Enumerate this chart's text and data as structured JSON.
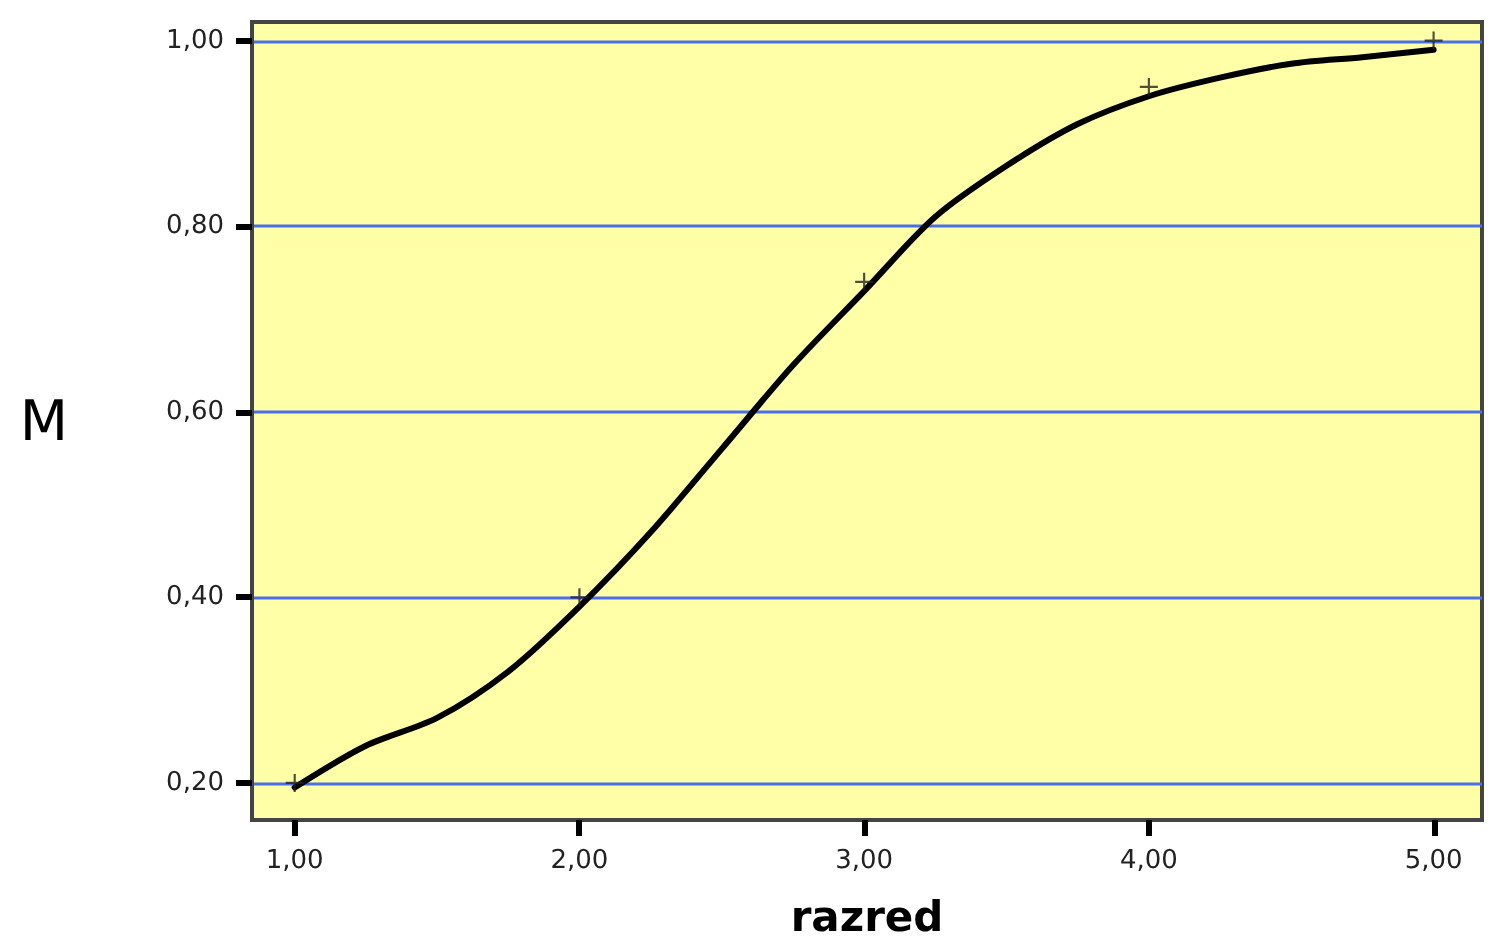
{
  "chart_data": {
    "type": "scatter",
    "xlabel": "razred",
    "ylabel": "M",
    "xlim": [
      0.85,
      5.17
    ],
    "xticks": [
      {
        "value": 1,
        "label": "1,00"
      },
      {
        "value": 2,
        "label": "2,00"
      },
      {
        "value": 3,
        "label": "3,00"
      },
      {
        "value": 4,
        "label": "4,00"
      },
      {
        "value": 5,
        "label": "5,00"
      }
    ],
    "ylim": [
      0.16,
      1.02
    ],
    "yticks": [
      {
        "value": 0.2,
        "label": "0,20"
      },
      {
        "value": 0.4,
        "label": "0,40"
      },
      {
        "value": 0.6,
        "label": "0,60"
      },
      {
        "value": 0.8,
        "label": "0,80"
      },
      {
        "value": 1.0,
        "label": "1,00"
      }
    ],
    "grid": "y",
    "marker": "cross",
    "series": [
      {
        "color": "#222222",
        "x": [
          1,
          2,
          3,
          4,
          5
        ],
        "values": [
          0.2,
          0.4,
          0.74,
          0.95,
          1.0
        ]
      },
      {
        "type": "line",
        "color": "#000000",
        "line_style": "solid",
        "marker": "none",
        "x": [
          1,
          1.25,
          1.5,
          1.75,
          2,
          2.25,
          2.5,
          2.75,
          3,
          3.25,
          3.5,
          3.75,
          4,
          4.25,
          4.5,
          4.75,
          5
        ],
        "values": [
          0.195,
          0.24,
          0.27,
          0.32,
          0.39,
          0.47,
          0.56,
          0.65,
          0.73,
          0.81,
          0.865,
          0.91,
          0.94,
          0.96,
          0.975,
          0.982,
          0.99
        ]
      }
    ]
  }
}
